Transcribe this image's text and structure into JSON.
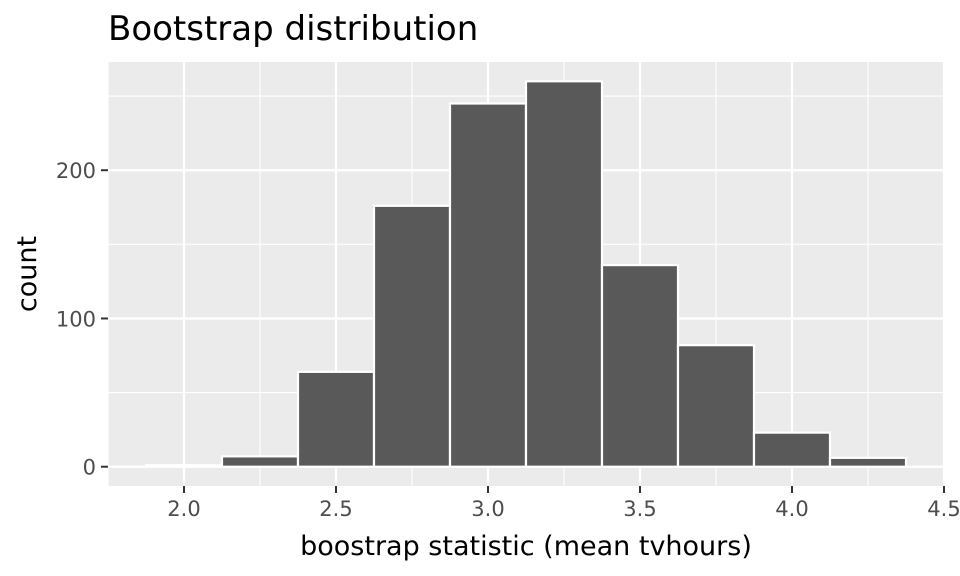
{
  "chart_data": {
    "type": "bar",
    "title": "Bootstrap distribution",
    "xlabel": "boostrap statistic (mean tvhours)",
    "ylabel": "count",
    "bin_width": 0.25,
    "bins": [
      {
        "x0": 1.875,
        "x1": 2.125,
        "count": 1
      },
      {
        "x0": 2.125,
        "x1": 2.375,
        "count": 7
      },
      {
        "x0": 2.375,
        "x1": 2.625,
        "count": 64
      },
      {
        "x0": 2.625,
        "x1": 2.875,
        "count": 176
      },
      {
        "x0": 2.875,
        "x1": 3.125,
        "count": 245
      },
      {
        "x0": 3.125,
        "x1": 3.375,
        "count": 260
      },
      {
        "x0": 3.375,
        "x1": 3.625,
        "count": 136
      },
      {
        "x0": 3.625,
        "x1": 3.875,
        "count": 82
      },
      {
        "x0": 3.875,
        "x1": 4.125,
        "count": 23
      },
      {
        "x0": 4.125,
        "x1": 4.375,
        "count": 6
      }
    ],
    "xlim": [
      1.75,
      4.5
    ],
    "ylim": [
      -13,
      273
    ],
    "x_ticks": [
      2.0,
      2.5,
      3.0,
      3.5,
      4.0,
      4.5
    ],
    "x_tick_labels": [
      "2.0",
      "2.5",
      "3.0",
      "3.5",
      "4.0",
      "4.5"
    ],
    "y_ticks": [
      0,
      100,
      200
    ],
    "y_tick_labels": [
      "0",
      "100",
      "200"
    ],
    "grid": true,
    "legend": "none",
    "colors": {
      "bar_fill": "#595959",
      "bar_stroke": "#ffffff",
      "panel_bg": "#ebebeb",
      "grid_major": "#ffffff",
      "tick_color": "#333333"
    }
  }
}
